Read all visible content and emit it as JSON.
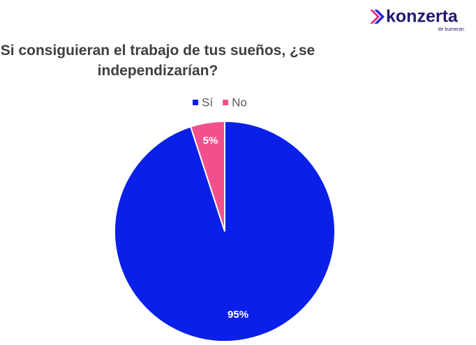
{
  "logo": {
    "name": "konzerta",
    "tagline": "de bumeran"
  },
  "chart_data": {
    "type": "pie",
    "title": "Si consiguieran el trabajo de tus sueños, ¿se independizarían?",
    "categories": [
      "Sí",
      "No"
    ],
    "values": [
      95,
      5
    ],
    "value_labels": [
      "95%",
      "5%"
    ],
    "colors": [
      "#0a1fe8",
      "#f2508d"
    ],
    "legend": "top"
  }
}
